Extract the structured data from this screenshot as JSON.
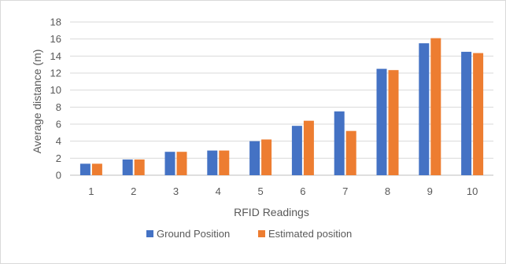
{
  "chart_data": {
    "type": "bar",
    "title": "",
    "xlabel": "RFID Readings",
    "ylabel": "Average distance (m)",
    "categories": [
      "1",
      "2",
      "3",
      "4",
      "5",
      "6",
      "7",
      "8",
      "9",
      "10"
    ],
    "ylim": [
      0,
      18
    ],
    "yticks": [
      "0",
      "2",
      "4",
      "6",
      "8",
      "10",
      "12",
      "14",
      "16",
      "18"
    ],
    "grid": true,
    "legend_position": "bottom",
    "series": [
      {
        "name": "Ground Position",
        "color": "#4472C4",
        "values": [
          1.35,
          1.85,
          2.75,
          2.9,
          4.0,
          5.8,
          7.5,
          12.5,
          15.5,
          14.5
        ]
      },
      {
        "name": "Estimated position",
        "color": "#ED7D31",
        "values": [
          1.35,
          1.85,
          2.75,
          2.9,
          4.2,
          6.4,
          5.2,
          12.35,
          16.1,
          14.35
        ]
      }
    ]
  }
}
